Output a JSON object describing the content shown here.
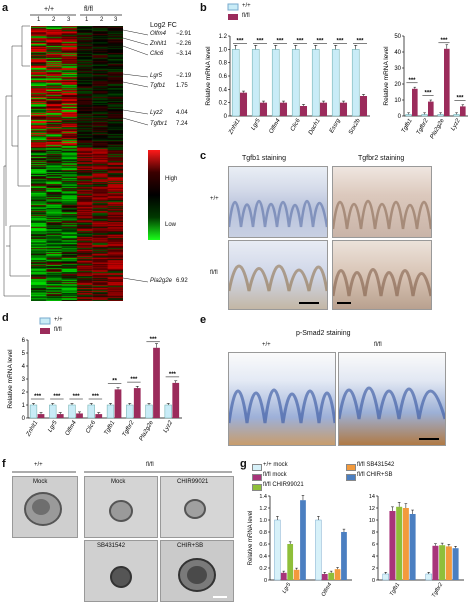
{
  "panels": {
    "a": {
      "letter": "a",
      "groups": [
        "+/+",
        "fl/fl"
      ],
      "lanes": [
        "1",
        "2",
        "3",
        "1",
        "2",
        "3"
      ],
      "fc_header": "Log2 FC",
      "genes": [
        {
          "name": "Olfm4",
          "fc": "−2.91"
        },
        {
          "name": "Znhit1",
          "fc": "−2.26"
        },
        {
          "name": "Clic6",
          "fc": "−3.14"
        },
        {
          "name": "Lgr5",
          "fc": "−2.19"
        },
        {
          "name": "Tgfb1",
          "fc": "1.75"
        },
        {
          "name": "Lyz2",
          "fc": "4.04"
        },
        {
          "name": "Tgfbr1",
          "fc": "7.24"
        },
        {
          "name": "Pla2g2e",
          "fc": "6.92"
        }
      ],
      "legend": {
        "high": "High",
        "low": "Low"
      },
      "colors": {
        "high": "#ff1a1a",
        "low": "#1aff1a",
        "mid": "#000000"
      }
    },
    "b": {
      "letter": "b",
      "legend": [
        "+/+",
        "fl/fl"
      ],
      "colors": {
        "wt": "#c9ecf7",
        "ko": "#9b2b5b"
      },
      "chart_data": [
        {
          "type": "bar",
          "ylabel": "Relative mRNA level",
          "ylim": [
            0,
            1.2
          ],
          "yticks": [
            "0",
            "0.2",
            "0.4",
            "0.6",
            "0.8",
            "1.0",
            "1.2"
          ],
          "categories": [
            "Znhit1",
            "Lgr5",
            "Olfm4",
            "Clic6",
            "Dach1",
            "Essrg",
            "Sox2b"
          ],
          "series": [
            {
              "name": "+/+",
              "values": [
                1.0,
                1.0,
                1.0,
                1.0,
                1.0,
                1.0,
                1.0
              ]
            },
            {
              "name": "fl/fl",
              "values": [
                0.35,
                0.2,
                0.2,
                0.15,
                0.2,
                0.2,
                0.3
              ]
            }
          ],
          "sig": [
            "***",
            "***",
            "***",
            "***",
            "***",
            "***",
            "***"
          ]
        },
        {
          "type": "bar",
          "ylabel": "Relative mRNA level",
          "ylim": [
            0,
            50
          ],
          "yticks": [
            "0",
            "10",
            "20",
            "30",
            "40",
            "50"
          ],
          "categories": [
            "Tgfb1",
            "Tgfbr2",
            "Pla2g2e",
            "Lyz2"
          ],
          "series": [
            {
              "name": "+/+",
              "values": [
                1,
                1,
                1,
                1
              ]
            },
            {
              "name": "fl/fl",
              "values": [
                17,
                9,
                42,
                6
              ]
            }
          ],
          "sig": [
            "***",
            "***",
            "***",
            "***"
          ]
        }
      ]
    },
    "c": {
      "letter": "c",
      "titles": [
        "Tgfb1 staining",
        "Tgfbr2 staining"
      ],
      "rows": [
        "+/+",
        "fl/fl"
      ]
    },
    "d": {
      "letter": "d",
      "legend": [
        "+/+",
        "fl/fl"
      ],
      "chart_data": {
        "type": "bar",
        "ylabel": "Relative mRNA level",
        "ylim": [
          0,
          6
        ],
        "yticks": [
          "0",
          "1",
          "2",
          "3",
          "4",
          "5",
          "6"
        ],
        "categories": [
          "Znhit1",
          "Lgr5",
          "Olfm4",
          "Clic6",
          "Tgfb1",
          "Tgfbr2",
          "Pla2g2e",
          "Lyz2"
        ],
        "series": [
          {
            "name": "+/+",
            "values": [
              1,
              1,
              1,
              1,
              1,
              1,
              1,
              1
            ]
          },
          {
            "name": "fl/fl",
            "values": [
              0.3,
              0.3,
              0.35,
              0.3,
              2.2,
              2.3,
              5.4,
              2.7
            ]
          }
        ],
        "sig": [
          "***",
          "***",
          "***",
          "***",
          "**",
          "***",
          "***",
          "***"
        ]
      }
    },
    "e": {
      "letter": "e",
      "title": "p-Smad2 staining",
      "labels": [
        "+/+",
        "fl/fl"
      ]
    },
    "f": {
      "letter": "f",
      "groups": [
        "+/+",
        "fl/fl"
      ],
      "conditions": [
        "Mock",
        "Mock",
        "CHIR99021",
        "SB431542",
        "CHIR+SB"
      ]
    },
    "g": {
      "letter": "g",
      "legend": [
        "+/+ mock",
        "fl/fl mock",
        "fl/fl CHIR99021",
        "fl/fl SB431542",
        "fl/fl CHIR+SB"
      ],
      "colors": [
        "#d7f1f9",
        "#a8347a",
        "#8fbf3a",
        "#f39a3c",
        "#4b7fc1"
      ],
      "chart_data": [
        {
          "type": "bar",
          "ylabel": "Relative mRNA level",
          "ylim": [
            0,
            1.4
          ],
          "yticks": [
            "0",
            "0.2",
            "0.4",
            "0.6",
            "0.8",
            "1.0",
            "1.2",
            "1.4"
          ],
          "categories": [
            "Lgr5",
            "Olfm4"
          ],
          "series": [
            {
              "name": "+/+ mock",
              "values": [
                1.0,
                1.0
              ]
            },
            {
              "name": "fl/fl mock",
              "values": [
                0.12,
                0.1
              ]
            },
            {
              "name": "fl/fl CHIR99021",
              "values": [
                0.6,
                0.12
              ]
            },
            {
              "name": "fl/fl SB431542",
              "values": [
                0.17,
                0.18
              ]
            },
            {
              "name": "fl/fl CHIR+SB",
              "values": [
                1.33,
                0.8
              ]
            }
          ]
        },
        {
          "type": "bar",
          "ylabel": "",
          "ylim": [
            0,
            14
          ],
          "yticks": [
            "0",
            "2",
            "4",
            "6",
            "8",
            "10",
            "12",
            "14"
          ],
          "categories": [
            "Tgfb1",
            "Tgfbr2"
          ],
          "series": [
            {
              "name": "+/+ mock",
              "values": [
                1,
                1
              ]
            },
            {
              "name": "fl/fl mock",
              "values": [
                11.5,
                5.7
              ]
            },
            {
              "name": "fl/fl CHIR99021",
              "values": [
                12.2,
                5.8
              ]
            },
            {
              "name": "fl/fl SB431542",
              "values": [
                12.0,
                5.6
              ]
            },
            {
              "name": "fl/fl CHIR+SB",
              "values": [
                11.0,
                5.3
              ]
            }
          ]
        }
      ]
    }
  }
}
